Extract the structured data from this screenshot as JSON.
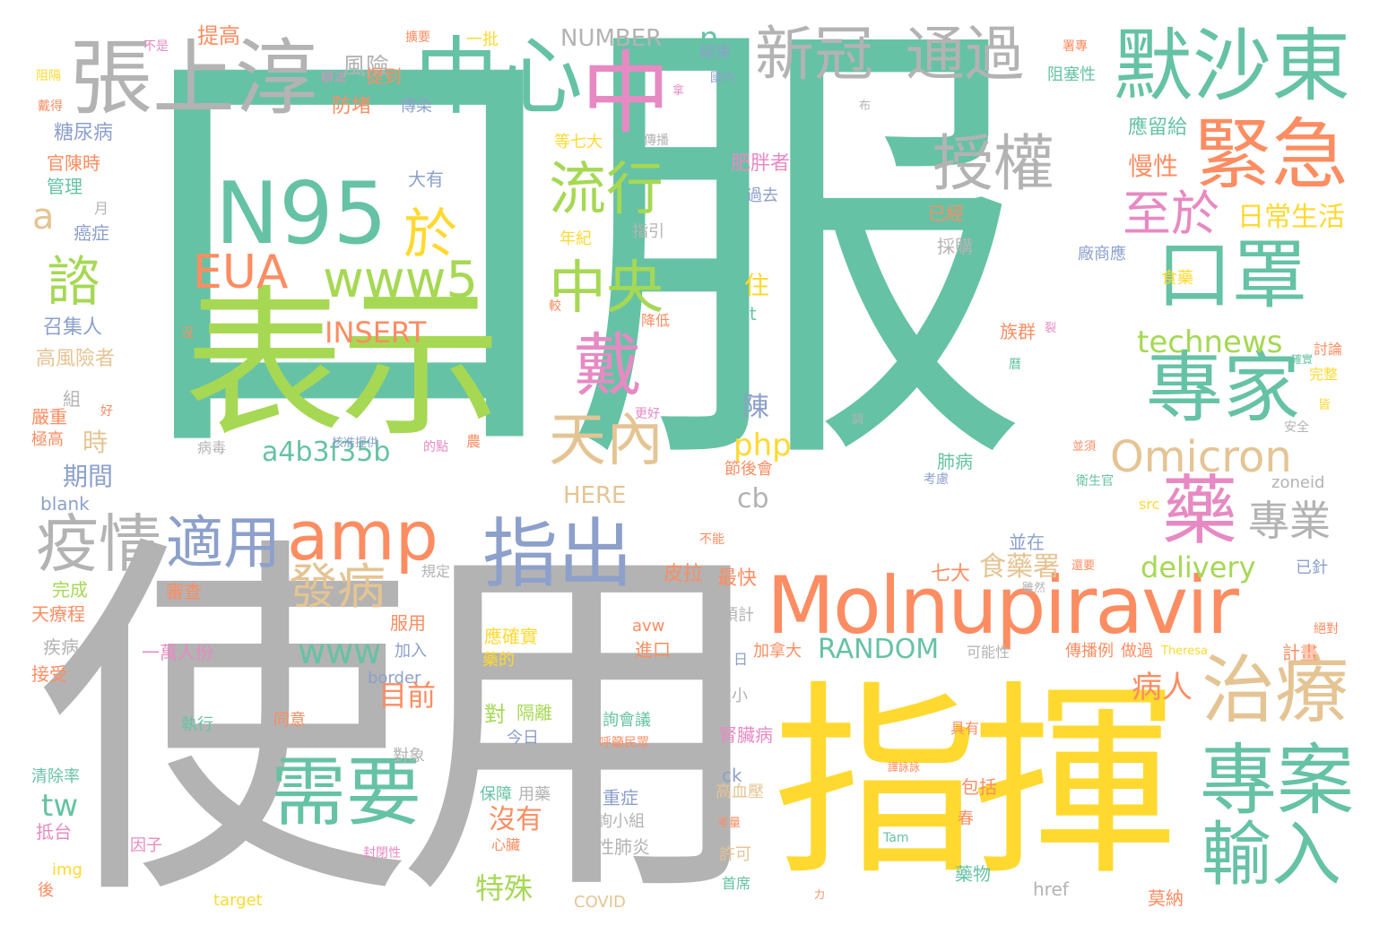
{
  "palette": {
    "teal": "#66c2a5",
    "orange": "#fc8d62",
    "blue": "#8da0cb",
    "pink": "#e78ac3",
    "green": "#a6d854",
    "yellow": "#ffd92f",
    "tan": "#e5c494",
    "gray": "#b3b3b3"
  },
  "words": [
    {
      "text": "口服",
      "color": "teal"
    },
    {
      "text": "使用",
      "color": "gray"
    },
    {
      "text": "指揮",
      "color": "yellow"
    },
    {
      "text": "表示",
      "color": "green"
    },
    {
      "text": "Molnupiravir",
      "color": "orange"
    },
    {
      "text": "N95",
      "color": "teal"
    },
    {
      "text": "中心",
      "color": "teal"
    },
    {
      "text": "中",
      "color": "pink"
    },
    {
      "text": "張上淳",
      "color": "gray"
    },
    {
      "text": "新冠",
      "color": "gray"
    },
    {
      "text": "通過",
      "color": "gray"
    },
    {
      "text": "默沙東",
      "color": "teal"
    },
    {
      "text": "緊急",
      "color": "orange"
    },
    {
      "text": "授權",
      "color": "gray"
    },
    {
      "text": "口罩",
      "color": "teal"
    },
    {
      "text": "專家",
      "color": "teal"
    },
    {
      "text": "專案",
      "color": "teal"
    },
    {
      "text": "治療",
      "color": "tan"
    },
    {
      "text": "輸入",
      "color": "teal"
    },
    {
      "text": "藥",
      "color": "pink"
    },
    {
      "text": "指出",
      "color": "blue"
    },
    {
      "text": "需要",
      "color": "teal"
    },
    {
      "text": "amp",
      "color": "orange"
    },
    {
      "text": "疫情",
      "color": "gray"
    },
    {
      "text": "適用",
      "color": "blue"
    },
    {
      "text": "EUA",
      "color": "orange"
    },
    {
      "text": "www5",
      "color": "green"
    },
    {
      "text": "於",
      "color": "yellow"
    },
    {
      "text": "流行",
      "color": "green"
    },
    {
      "text": "中央",
      "color": "green"
    },
    {
      "text": "戴",
      "color": "pink"
    },
    {
      "text": "天內",
      "color": "tan"
    },
    {
      "text": "Omicron",
      "color": "tan"
    },
    {
      "text": "諮",
      "color": "green"
    },
    {
      "text": "至於",
      "color": "pink"
    },
    {
      "text": "發病",
      "color": "tan"
    },
    {
      "text": "專業",
      "color": "gray"
    },
    {
      "text": "technews",
      "color": "green"
    },
    {
      "text": "www",
      "color": "teal"
    },
    {
      "text": "a4b3f35b",
      "color": "teal"
    },
    {
      "text": "NUMBER",
      "color": "gray"
    },
    {
      "text": "風險",
      "color": "gray"
    },
    {
      "text": "INSERT",
      "color": "orange"
    },
    {
      "text": "delivery",
      "color": "green"
    },
    {
      "text": "RANDOM",
      "color": "teal"
    },
    {
      "text": "php",
      "color": "yellow"
    },
    {
      "text": "日常生活",
      "color": "yellow"
    },
    {
      "text": "a",
      "color": "tan"
    },
    {
      "text": "n",
      "color": "teal"
    },
    {
      "text": "tw",
      "color": "teal"
    },
    {
      "text": "cb",
      "color": "gray"
    },
    {
      "text": "病人",
      "color": "orange"
    },
    {
      "text": "HERE",
      "color": "tan"
    },
    {
      "text": "目前",
      "color": "orange"
    },
    {
      "text": "食藥署",
      "color": "tan"
    },
    {
      "text": "沒有",
      "color": "orange"
    },
    {
      "text": "特殊",
      "color": "green"
    },
    {
      "text": "期間",
      "color": "blue"
    },
    {
      "text": "時",
      "color": "tan"
    },
    {
      "text": "慢性",
      "color": "orange"
    },
    {
      "text": "提高",
      "color": "orange"
    },
    {
      "text": "防堵",
      "color": "orange"
    },
    {
      "text": "一批",
      "color": "yellow"
    },
    {
      "text": "結束",
      "color": "blue"
    },
    {
      "text": "傳染",
      "color": "blue"
    },
    {
      "text": "提到",
      "color": "orange"
    },
    {
      "text": "糖尿病",
      "color": "blue"
    },
    {
      "text": "官陳時",
      "color": "orange"
    },
    {
      "text": "管理",
      "color": "teal"
    },
    {
      "text": "癌症",
      "color": "blue"
    },
    {
      "text": "召集人",
      "color": "blue"
    },
    {
      "text": "高風險者",
      "color": "tan"
    },
    {
      "text": "嚴重",
      "color": "orange"
    },
    {
      "text": "極高",
      "color": "orange"
    },
    {
      "text": "組",
      "color": "gray"
    },
    {
      "text": "等七大",
      "color": "yellow"
    },
    {
      "text": "大有",
      "color": "blue"
    },
    {
      "text": "肥胖者",
      "color": "pink"
    },
    {
      "text": "過去",
      "color": "blue"
    },
    {
      "text": "已經",
      "color": "orange"
    },
    {
      "text": "採購",
      "color": "gray"
    },
    {
      "text": "應留給",
      "color": "teal"
    },
    {
      "text": "阻塞性",
      "color": "teal"
    },
    {
      "text": "廠商應",
      "color": "blue"
    },
    {
      "text": "食藥",
      "color": "yellow"
    },
    {
      "text": "族群",
      "color": "orange"
    },
    {
      "text": "討論",
      "color": "orange"
    },
    {
      "text": "完整",
      "color": "yellow"
    },
    {
      "text": "年紀",
      "color": "yellow"
    },
    {
      "text": "指引",
      "color": "gray"
    },
    {
      "text": "降低",
      "color": "orange"
    },
    {
      "text": "住",
      "color": "yellow"
    },
    {
      "text": "陳",
      "color": "blue"
    },
    {
      "text": "alt",
      "color": "teal"
    },
    {
      "text": "節後會",
      "color": "orange"
    },
    {
      "text": "肺病",
      "color": "teal"
    },
    {
      "text": "衛生官",
      "color": "teal"
    },
    {
      "text": "zoneid",
      "color": "gray"
    },
    {
      "text": "src",
      "color": "yellow"
    },
    {
      "text": "並在",
      "color": "blue"
    },
    {
      "text": "已針",
      "color": "blue"
    },
    {
      "text": "皮拉",
      "color": "orange"
    },
    {
      "text": "最快",
      "color": "orange"
    },
    {
      "text": "七大",
      "color": "orange"
    },
    {
      "text": "審查",
      "color": "orange"
    },
    {
      "text": "完成",
      "color": "green"
    },
    {
      "text": "天療程",
      "color": "orange"
    },
    {
      "text": "疾病",
      "color": "gray"
    },
    {
      "text": "接受",
      "color": "orange"
    },
    {
      "text": "blank",
      "color": "blue"
    },
    {
      "text": "服用",
      "color": "orange"
    },
    {
      "text": "加入",
      "color": "blue"
    },
    {
      "text": "一萬人份",
      "color": "pink"
    },
    {
      "text": "border",
      "color": "blue"
    },
    {
      "text": "應確實",
      "color": "yellow"
    },
    {
      "text": "藥的",
      "color": "yellow"
    },
    {
      "text": "avw",
      "color": "orange"
    },
    {
      "text": "進口",
      "color": "orange"
    },
    {
      "text": "加拿大",
      "color": "orange"
    },
    {
      "text": "可能性",
      "color": "gray"
    },
    {
      "text": "傳播例",
      "color": "orange"
    },
    {
      "text": "做過",
      "color": "orange"
    },
    {
      "text": "計畫",
      "color": "orange"
    },
    {
      "text": "預計",
      "color": "gray"
    },
    {
      "text": "家小",
      "color": "gray"
    },
    {
      "text": "對",
      "color": "green"
    },
    {
      "text": "隔離",
      "color": "green"
    },
    {
      "text": "詢會議",
      "color": "teal"
    },
    {
      "text": "呼籲民眾",
      "color": "orange"
    },
    {
      "text": "腎臟病",
      "color": "pink"
    },
    {
      "text": "具有",
      "color": "orange"
    },
    {
      "text": "執行",
      "color": "teal"
    },
    {
      "text": "同意",
      "color": "orange"
    },
    {
      "text": "今日",
      "color": "blue"
    },
    {
      "text": "對象",
      "color": "gray"
    },
    {
      "text": "清除率",
      "color": "teal"
    },
    {
      "text": "抵台",
      "color": "pink"
    },
    {
      "text": "因子",
      "color": "pink"
    },
    {
      "text": "img",
      "color": "yellow"
    },
    {
      "text": "後",
      "color": "orange"
    },
    {
      "text": "保障",
      "color": "teal"
    },
    {
      "text": "用藥",
      "color": "gray"
    },
    {
      "text": "心臟",
      "color": "orange"
    },
    {
      "text": "重症",
      "color": "blue"
    },
    {
      "text": "詢小組",
      "color": "gray"
    },
    {
      "text": "性肺炎",
      "color": "gray"
    },
    {
      "text": "ck",
      "color": "blue"
    },
    {
      "text": "高血壓",
      "color": "tan"
    },
    {
      "text": "許可",
      "color": "tan"
    },
    {
      "text": "首席",
      "color": "teal"
    },
    {
      "text": "包括",
      "color": "orange"
    },
    {
      "text": "春",
      "color": "orange"
    },
    {
      "text": "藥物",
      "color": "teal"
    },
    {
      "text": "href",
      "color": "gray"
    },
    {
      "text": "莫納",
      "color": "orange"
    },
    {
      "text": "target",
      "color": "yellow"
    },
    {
      "text": "COVID",
      "color": "tan"
    },
    {
      "text": "Tam",
      "color": "teal"
    },
    {
      "text": "封閉性",
      "color": "pink"
    },
    {
      "text": "Theresa",
      "color": "yellow"
    },
    {
      "text": "不是",
      "color": "pink"
    },
    {
      "text": "阻隔",
      "color": "yellow"
    },
    {
      "text": "戴得",
      "color": "orange"
    },
    {
      "text": "辦法",
      "color": "pink"
    },
    {
      "text": "保護力",
      "color": "teal"
    },
    {
      "text": "國內",
      "color": "blue"
    },
    {
      "text": "擴要",
      "color": "orange"
    },
    {
      "text": "傳播",
      "color": "gray"
    },
    {
      "text": "署專",
      "color": "orange"
    },
    {
      "text": "針對",
      "color": "teal"
    },
    {
      "text": "月",
      "color": "gray"
    },
    {
      "text": "核准提供",
      "color": "blue"
    },
    {
      "text": "較",
      "color": "orange"
    },
    {
      "text": "沒",
      "color": "orange"
    },
    {
      "text": "好",
      "color": "orange"
    },
    {
      "text": "更好",
      "color": "pink"
    },
    {
      "text": "的點",
      "color": "pink"
    },
    {
      "text": "農",
      "color": "orange"
    },
    {
      "text": "病毒",
      "color": "gray"
    },
    {
      "text": "確實",
      "color": "teal"
    },
    {
      "text": "曆",
      "color": "teal"
    },
    {
      "text": "裂",
      "color": "pink"
    },
    {
      "text": "皆",
      "color": "yellow"
    },
    {
      "text": "安全",
      "color": "gray"
    },
    {
      "text": "並須",
      "color": "orange"
    },
    {
      "text": "考慮",
      "color": "blue"
    },
    {
      "text": "雖然",
      "color": "gray"
    },
    {
      "text": "還要",
      "color": "orange"
    },
    {
      "text": "不能",
      "color": "orange"
    },
    {
      "text": "規定",
      "color": "gray"
    },
    {
      "text": "日",
      "color": "blue"
    },
    {
      "text": "絕對",
      "color": "orange"
    },
    {
      "text": "譯詠詠",
      "color": "orange"
    },
    {
      "text": "考量",
      "color": "orange"
    },
    {
      "text": "力",
      "color": "orange"
    },
    {
      "text": "布",
      "color": "gray"
    },
    {
      "text": "調",
      "color": "gray"
    },
    {
      "text": "拿",
      "color": "pink"
    }
  ]
}
